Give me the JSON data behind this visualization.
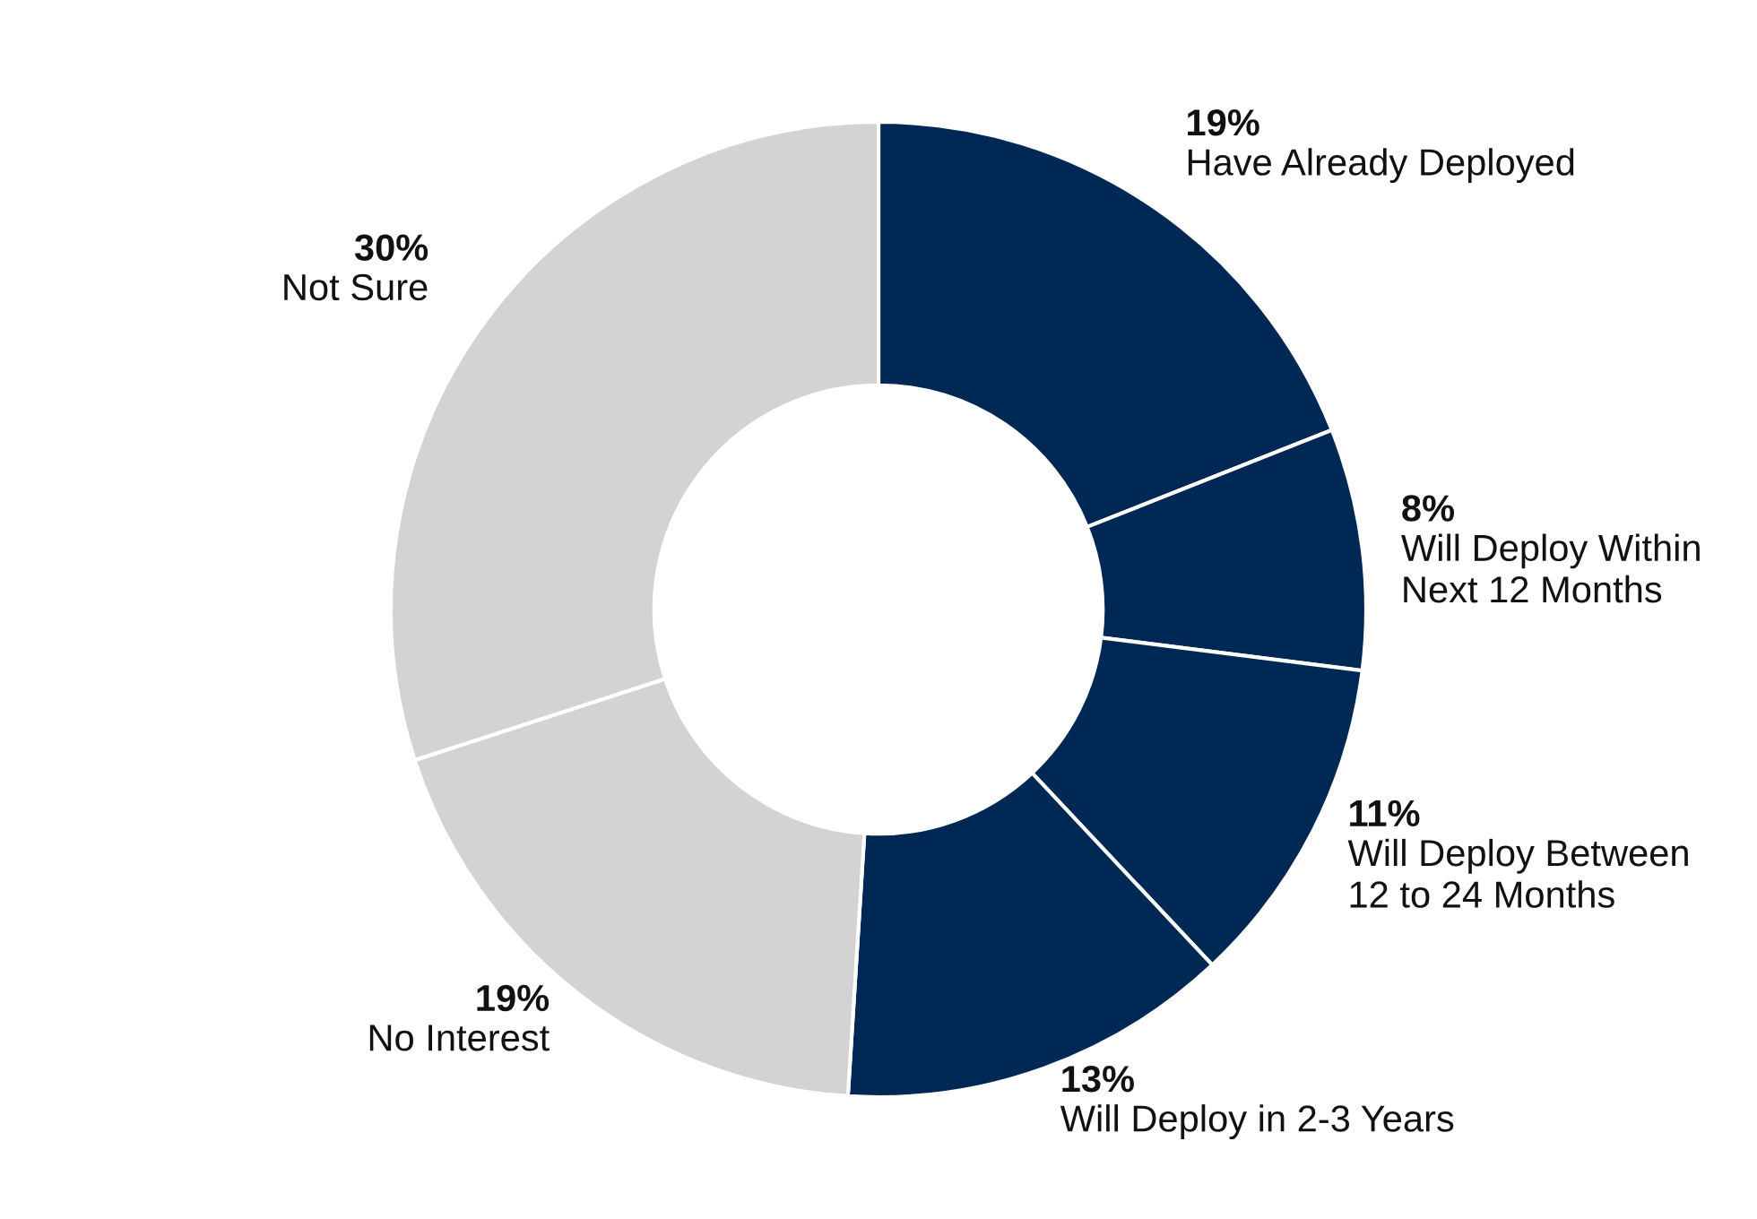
{
  "chart_data": {
    "type": "donut",
    "categories": [
      "Have Already Deployed",
      "Will Deploy Within\nNext 12 Months",
      "Will Deploy Between\n12 to 24 Months",
      "Will Deploy in 2-3 Years",
      "No Interest",
      "Not Sure"
    ],
    "values": [
      19,
      8,
      11,
      13,
      19,
      30
    ],
    "value_labels": [
      "19%",
      "8%",
      "11%",
      "13%",
      "19%",
      "30%"
    ],
    "colors": [
      "#002855",
      "#002855",
      "#002855",
      "#002855",
      "#d3d3d3",
      "#d3d3d3"
    ]
  }
}
